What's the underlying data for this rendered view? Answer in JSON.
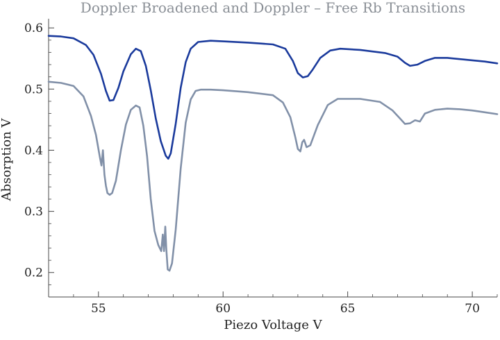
{
  "chart_data": {
    "type": "line",
    "title": "Doppler Broadened and Doppler – Free Rb Transitions",
    "xlabel": "Piezo Voltage V",
    "ylabel": "Absorption V",
    "xlim": [
      53,
      71
    ],
    "ylim": [
      0.16,
      0.615
    ],
    "x_ticks": [
      55,
      60,
      65,
      70
    ],
    "x_tick_labels": [
      "55",
      "60",
      "65",
      "70"
    ],
    "y_ticks": [
      0.2,
      0.3,
      0.4,
      0.5,
      0.6
    ],
    "y_tick_labels": [
      "0.2",
      "0.3",
      "0.4",
      "0.5",
      "0.6"
    ],
    "grid": false,
    "series": [
      {
        "color": "#1a3a9c",
        "x": [
          53.0,
          53.5,
          54.0,
          54.5,
          54.8,
          55.1,
          55.3,
          55.45,
          55.6,
          55.8,
          56.0,
          56.3,
          56.5,
          56.7,
          56.9,
          57.1,
          57.3,
          57.5,
          57.7,
          57.8,
          57.9,
          58.1,
          58.3,
          58.5,
          58.7,
          59.0,
          59.5,
          60.0,
          61.0,
          62.0,
          62.5,
          62.8,
          63.0,
          63.2,
          63.4,
          63.6,
          63.9,
          64.3,
          64.7,
          65.5,
          66.5,
          67.0,
          67.3,
          67.5,
          67.8,
          68.1,
          68.5,
          69.0,
          69.5,
          70.0,
          70.5,
          71.0
        ],
        "values": [
          0.587,
          0.586,
          0.583,
          0.572,
          0.556,
          0.525,
          0.497,
          0.481,
          0.482,
          0.502,
          0.529,
          0.557,
          0.566,
          0.562,
          0.538,
          0.498,
          0.452,
          0.415,
          0.391,
          0.386,
          0.395,
          0.443,
          0.502,
          0.544,
          0.566,
          0.577,
          0.579,
          0.578,
          0.576,
          0.573,
          0.566,
          0.546,
          0.526,
          0.519,
          0.521,
          0.532,
          0.551,
          0.563,
          0.566,
          0.564,
          0.559,
          0.553,
          0.543,
          0.538,
          0.54,
          0.546,
          0.551,
          0.551,
          0.549,
          0.547,
          0.545,
          0.542
        ]
      },
      {
        "color": "#8190a8",
        "x": [
          53.0,
          53.5,
          54.0,
          54.4,
          54.7,
          54.9,
          55.05,
          55.12,
          55.18,
          55.24,
          55.3,
          55.36,
          55.45,
          55.55,
          55.7,
          55.9,
          56.1,
          56.3,
          56.5,
          56.65,
          56.8,
          56.95,
          57.1,
          57.25,
          57.4,
          57.52,
          57.58,
          57.63,
          57.68,
          57.72,
          57.78,
          57.85,
          57.95,
          58.1,
          58.3,
          58.5,
          58.7,
          58.9,
          59.1,
          59.5,
          60.0,
          61.0,
          62.0,
          62.4,
          62.7,
          62.9,
          63.0,
          63.1,
          63.18,
          63.25,
          63.35,
          63.5,
          63.8,
          64.2,
          64.6,
          65.5,
          66.3,
          66.8,
          67.1,
          67.3,
          67.5,
          67.7,
          67.9,
          68.1,
          68.5,
          69.0,
          69.5,
          70.0,
          70.5,
          71.0
        ],
        "values": [
          0.512,
          0.51,
          0.505,
          0.488,
          0.456,
          0.425,
          0.39,
          0.375,
          0.4,
          0.36,
          0.342,
          0.33,
          0.327,
          0.33,
          0.35,
          0.4,
          0.442,
          0.466,
          0.473,
          0.47,
          0.44,
          0.39,
          0.32,
          0.268,
          0.245,
          0.235,
          0.262,
          0.235,
          0.275,
          0.24,
          0.205,
          0.203,
          0.215,
          0.27,
          0.37,
          0.445,
          0.483,
          0.497,
          0.499,
          0.499,
          0.498,
          0.495,
          0.49,
          0.478,
          0.454,
          0.421,
          0.402,
          0.398,
          0.413,
          0.417,
          0.405,
          0.408,
          0.441,
          0.474,
          0.484,
          0.484,
          0.479,
          0.465,
          0.452,
          0.443,
          0.444,
          0.449,
          0.447,
          0.46,
          0.466,
          0.468,
          0.467,
          0.465,
          0.462,
          0.459
        ]
      }
    ]
  }
}
